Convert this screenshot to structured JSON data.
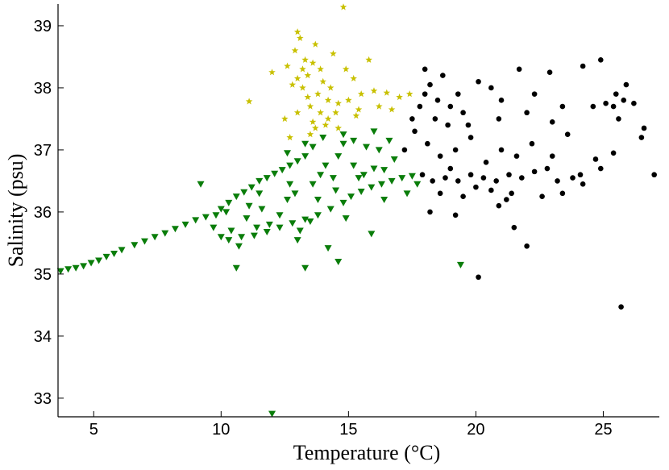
{
  "chart_data": {
    "type": "scatter",
    "xlabel": "Temperature (°C)",
    "ylabel": "Salinity (psu)",
    "xlim": [
      3.6,
      27.2
    ],
    "ylim": [
      32.7,
      39.35
    ],
    "xticks": [
      5,
      10,
      15,
      20,
      25
    ],
    "yticks": [
      33,
      34,
      35,
      36,
      37,
      38,
      39
    ],
    "grid": false,
    "legend": "none",
    "series": [
      {
        "marker": "triangle-down",
        "color": "#0a7d0a",
        "points": [
          [
            3.7,
            35.05
          ],
          [
            4.0,
            35.08
          ],
          [
            4.3,
            35.1
          ],
          [
            4.6,
            35.13
          ],
          [
            4.9,
            35.18
          ],
          [
            5.2,
            35.22
          ],
          [
            5.5,
            35.28
          ],
          [
            5.8,
            35.33
          ],
          [
            6.1,
            35.39
          ],
          [
            6.6,
            35.47
          ],
          [
            7.0,
            35.53
          ],
          [
            7.4,
            35.6
          ],
          [
            7.8,
            35.66
          ],
          [
            8.2,
            35.73
          ],
          [
            8.6,
            35.8
          ],
          [
            9.0,
            35.87
          ],
          [
            9.4,
            35.92
          ],
          [
            9.2,
            36.45
          ],
          [
            10.6,
            35.1
          ],
          [
            12.0,
            32.75
          ],
          [
            19.4,
            35.15
          ],
          [
            13.3,
            35.1
          ],
          [
            14.2,
            35.42
          ],
          [
            14.6,
            35.2
          ],
          [
            9.8,
            35.95
          ],
          [
            10.0,
            36.05
          ],
          [
            10.3,
            36.15
          ],
          [
            10.6,
            36.25
          ],
          [
            10.9,
            36.32
          ],
          [
            11.2,
            36.4
          ],
          [
            11.5,
            36.5
          ],
          [
            11.8,
            36.55
          ],
          [
            12.1,
            36.62
          ],
          [
            12.4,
            36.68
          ],
          [
            12.7,
            36.75
          ],
          [
            13.0,
            36.82
          ],
          [
            13.3,
            36.9
          ],
          [
            13.6,
            37.05
          ],
          [
            14.0,
            37.2
          ],
          [
            13.8,
            36.2
          ],
          [
            12.9,
            36.3
          ],
          [
            11.6,
            36.05
          ],
          [
            12.3,
            35.95
          ],
          [
            13.5,
            35.85
          ],
          [
            13.1,
            35.7
          ],
          [
            11.9,
            35.8
          ],
          [
            11.0,
            35.9
          ],
          [
            10.4,
            35.7
          ],
          [
            10.0,
            35.6
          ],
          [
            10.3,
            35.55
          ],
          [
            10.8,
            35.6
          ],
          [
            11.3,
            35.62
          ],
          [
            11.8,
            35.68
          ],
          [
            12.3,
            35.75
          ],
          [
            12.8,
            35.82
          ],
          [
            13.3,
            35.88
          ],
          [
            13.8,
            35.95
          ],
          [
            14.3,
            36.05
          ],
          [
            14.8,
            36.15
          ],
          [
            15.1,
            36.25
          ],
          [
            15.5,
            36.33
          ],
          [
            15.9,
            36.4
          ],
          [
            16.3,
            36.45
          ],
          [
            16.7,
            36.5
          ],
          [
            17.1,
            36.55
          ],
          [
            17.5,
            36.58
          ],
          [
            15.2,
            36.75
          ],
          [
            15.6,
            36.6
          ],
          [
            16.0,
            36.7
          ],
          [
            16.4,
            36.68
          ],
          [
            16.8,
            36.85
          ],
          [
            14.6,
            36.9
          ],
          [
            14.8,
            37.1
          ],
          [
            15.2,
            37.15
          ],
          [
            15.7,
            37.05
          ],
          [
            16.2,
            37.0
          ],
          [
            16.6,
            37.15
          ],
          [
            14.4,
            36.55
          ],
          [
            14.1,
            36.75
          ],
          [
            13.6,
            36.45
          ],
          [
            12.6,
            36.2
          ],
          [
            11.4,
            35.75
          ],
          [
            10.7,
            35.45
          ],
          [
            13.0,
            35.55
          ],
          [
            15.9,
            35.65
          ],
          [
            14.9,
            35.9
          ],
          [
            16.4,
            36.2
          ],
          [
            17.3,
            36.3
          ],
          [
            17.7,
            36.45
          ],
          [
            15.4,
            36.55
          ],
          [
            14.5,
            36.35
          ],
          [
            13.9,
            36.6
          ],
          [
            12.6,
            36.95
          ],
          [
            13.3,
            37.1
          ],
          [
            14.8,
            37.25
          ],
          [
            16.0,
            37.3
          ],
          [
            11.5,
            36.3
          ],
          [
            10.2,
            36.0
          ],
          [
            9.7,
            35.75
          ],
          [
            11.1,
            36.1
          ],
          [
            12.7,
            36.45
          ]
        ]
      },
      {
        "marker": "star",
        "color": "#c8c000",
        "points": [
          [
            14.8,
            39.3
          ],
          [
            11.1,
            37.78
          ],
          [
            12.0,
            38.25
          ],
          [
            13.2,
            38.0
          ],
          [
            13.4,
            38.2
          ],
          [
            13.6,
            38.4
          ],
          [
            13.0,
            38.15
          ],
          [
            13.8,
            37.9
          ],
          [
            14.0,
            38.1
          ],
          [
            13.5,
            37.7
          ],
          [
            14.2,
            37.5
          ],
          [
            13.7,
            37.35
          ],
          [
            14.5,
            37.6
          ],
          [
            15.0,
            37.8
          ],
          [
            15.5,
            37.9
          ],
          [
            16.0,
            37.95
          ],
          [
            16.5,
            37.92
          ],
          [
            17.0,
            37.85
          ],
          [
            17.4,
            37.9
          ],
          [
            12.9,
            38.6
          ],
          [
            13.1,
            38.8
          ],
          [
            13.3,
            38.45
          ],
          [
            13.9,
            38.3
          ],
          [
            14.3,
            38.0
          ],
          [
            14.6,
            37.75
          ],
          [
            15.2,
            38.15
          ],
          [
            15.8,
            38.45
          ],
          [
            14.9,
            38.3
          ],
          [
            13.6,
            37.45
          ],
          [
            14.1,
            37.4
          ],
          [
            14.6,
            37.35
          ],
          [
            15.3,
            37.55
          ],
          [
            12.8,
            38.05
          ],
          [
            13.0,
            37.6
          ],
          [
            12.7,
            37.2
          ],
          [
            13.5,
            37.25
          ],
          [
            14.4,
            38.55
          ],
          [
            15.4,
            37.65
          ],
          [
            16.2,
            37.7
          ],
          [
            16.7,
            37.65
          ],
          [
            13.2,
            38.3
          ],
          [
            13.4,
            37.85
          ],
          [
            13.9,
            37.6
          ],
          [
            14.2,
            37.8
          ],
          [
            12.6,
            38.35
          ],
          [
            13.7,
            38.7
          ],
          [
            13.0,
            38.9
          ],
          [
            12.5,
            37.5
          ]
        ]
      },
      {
        "marker": "circle",
        "color": "#000000",
        "points": [
          [
            25.7,
            34.47
          ],
          [
            20.1,
            34.95
          ],
          [
            21.5,
            35.75
          ],
          [
            22.0,
            35.45
          ],
          [
            27.0,
            36.6
          ],
          [
            25.9,
            38.05
          ],
          [
            26.6,
            37.35
          ],
          [
            26.5,
            37.2
          ],
          [
            18.0,
            37.9
          ],
          [
            18.2,
            38.05
          ],
          [
            18.5,
            37.8
          ],
          [
            18.7,
            38.2
          ],
          [
            19.0,
            37.7
          ],
          [
            19.3,
            37.9
          ],
          [
            17.8,
            37.7
          ],
          [
            18.4,
            37.5
          ],
          [
            18.9,
            37.4
          ],
          [
            19.5,
            37.6
          ],
          [
            20.1,
            38.1
          ],
          [
            20.6,
            38.0
          ],
          [
            21.0,
            37.8
          ],
          [
            21.7,
            38.3
          ],
          [
            22.3,
            37.9
          ],
          [
            22.9,
            38.25
          ],
          [
            23.4,
            37.7
          ],
          [
            24.2,
            38.35
          ],
          [
            24.9,
            38.45
          ],
          [
            25.1,
            37.75
          ],
          [
            25.4,
            37.7
          ],
          [
            25.8,
            37.8
          ],
          [
            26.2,
            37.75
          ],
          [
            25.5,
            37.9
          ],
          [
            24.6,
            37.7
          ],
          [
            17.6,
            37.3
          ],
          [
            18.1,
            37.1
          ],
          [
            18.6,
            36.9
          ],
          [
            19.2,
            37.0
          ],
          [
            19.8,
            37.2
          ],
          [
            20.4,
            36.8
          ],
          [
            21.0,
            37.0
          ],
          [
            21.6,
            36.9
          ],
          [
            22.2,
            37.1
          ],
          [
            23.0,
            36.9
          ],
          [
            23.6,
            37.25
          ],
          [
            24.7,
            36.85
          ],
          [
            24.9,
            36.7
          ],
          [
            25.4,
            36.95
          ],
          [
            17.9,
            36.6
          ],
          [
            18.3,
            36.5
          ],
          [
            18.8,
            36.55
          ],
          [
            19.3,
            36.5
          ],
          [
            19.8,
            36.6
          ],
          [
            20.3,
            36.55
          ],
          [
            20.8,
            36.5
          ],
          [
            21.3,
            36.6
          ],
          [
            21.8,
            36.55
          ],
          [
            22.3,
            36.65
          ],
          [
            22.8,
            36.7
          ],
          [
            23.2,
            36.5
          ],
          [
            23.8,
            36.55
          ],
          [
            24.2,
            36.45
          ],
          [
            18.6,
            36.3
          ],
          [
            19.5,
            36.25
          ],
          [
            20.6,
            36.35
          ],
          [
            21.4,
            36.3
          ],
          [
            22.6,
            36.25
          ],
          [
            18.2,
            36.0
          ],
          [
            19.2,
            35.95
          ],
          [
            20.9,
            36.1
          ],
          [
            17.5,
            37.5
          ],
          [
            17.2,
            37.0
          ],
          [
            18.0,
            38.3
          ],
          [
            19.7,
            37.4
          ],
          [
            20.9,
            37.5
          ],
          [
            22.0,
            37.6
          ],
          [
            23.0,
            37.45
          ],
          [
            23.4,
            36.3
          ],
          [
            24.1,
            36.6
          ],
          [
            25.6,
            37.5
          ],
          [
            21.2,
            36.2
          ],
          [
            19.0,
            36.7
          ],
          [
            20.0,
            36.4
          ]
        ]
      }
    ]
  }
}
